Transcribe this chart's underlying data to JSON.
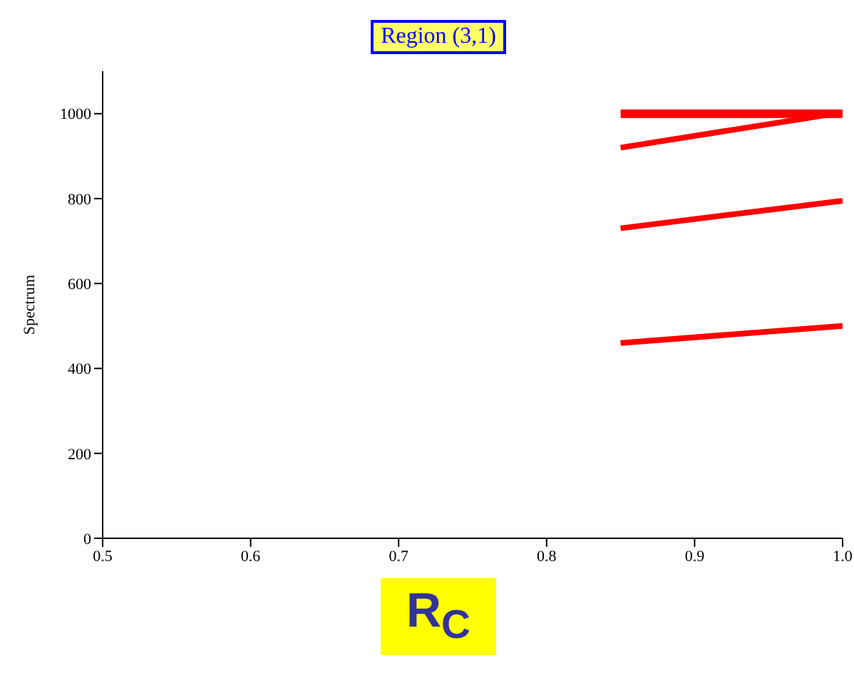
{
  "chart_data": {
    "type": "line",
    "title": "Region (3,1)",
    "xlabel": "R$_{C}$",
    "ylabel": "Spectrum",
    "xlim": [
      0.5,
      1.0
    ],
    "xticks": [
      0.5,
      0.6,
      0.7,
      0.8,
      0.9,
      {
        "value": 1.0,
        "label": "1.0"
      }
    ],
    "ylim": [
      0,
      1100
    ],
    "yticks": [
      0,
      200,
      400,
      600,
      800,
      1000
    ],
    "grid": false,
    "marker": "none",
    "line_style": "solid",
    "x": [
      0.85,
      1.0
    ],
    "series": [
      {
        "color": "#ff0000",
        "values": [
          1000,
          1000
        ]
      },
      {
        "color": "#ff0000",
        "values": [
          920,
          1003
        ]
      },
      {
        "color": "#ff0000",
        "values": [
          730,
          795
        ]
      },
      {
        "color": "#ff0000",
        "values": [
          460,
          500
        ]
      }
    ]
  }
}
